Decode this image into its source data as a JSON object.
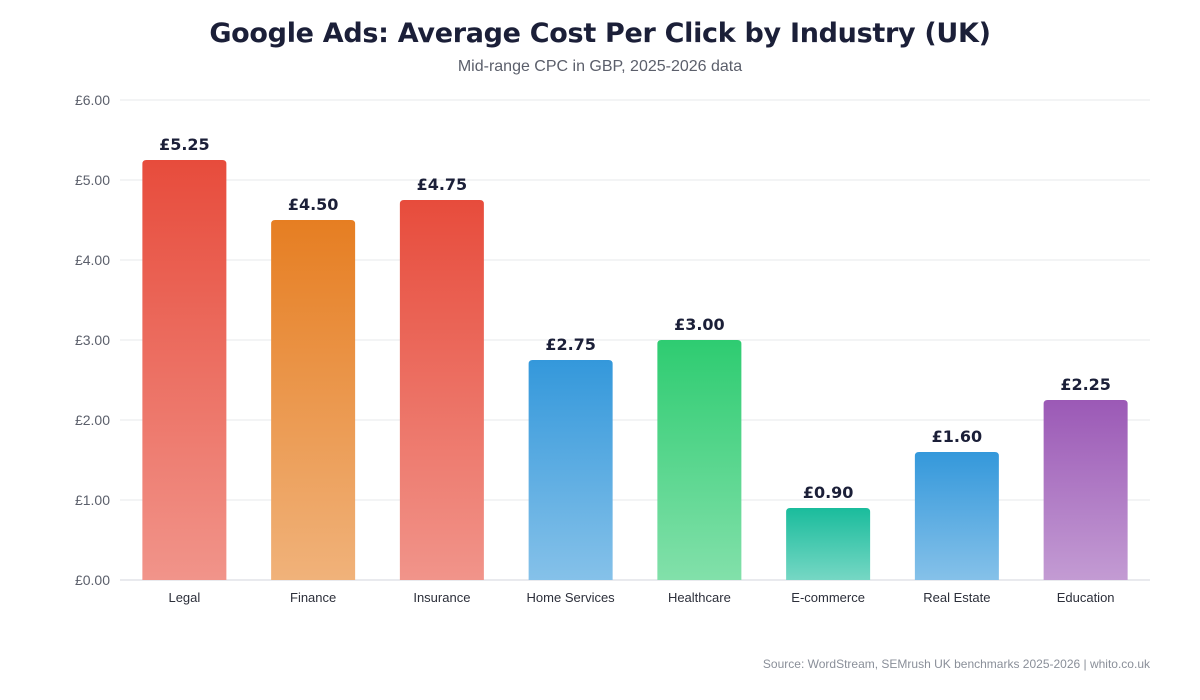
{
  "chart_data": {
    "type": "bar",
    "title": "Google Ads: Average Cost Per Click by Industry (UK)",
    "subtitle": "Mid-range CPC in GBP, 2025-2026 data",
    "categories": [
      "Legal",
      "Finance",
      "Insurance",
      "Home Services",
      "Healthcare",
      "E-commerce",
      "Real Estate",
      "Education"
    ],
    "values": [
      5.25,
      4.5,
      4.75,
      2.75,
      3.0,
      0.9,
      1.6,
      2.25
    ],
    "value_labels": [
      "£5.25",
      "£4.50",
      "£4.75",
      "£2.75",
      "£3.00",
      "£0.90",
      "£1.60",
      "£2.25"
    ],
    "yticks": [
      0,
      1,
      2,
      3,
      4,
      5,
      6
    ],
    "ytick_labels": [
      "£0.00",
      "£1.00",
      "£2.00",
      "£3.00",
      "£4.00",
      "£5.00",
      "£6.00"
    ],
    "ylim": [
      0,
      6
    ],
    "grid": true,
    "bar_colors": [
      [
        "#e74c3c",
        "#f1948a"
      ],
      [
        "#e67e22",
        "#f0b27a"
      ],
      [
        "#e74c3c",
        "#f1948a"
      ],
      [
        "#3498db",
        "#85c1e9"
      ],
      [
        "#2ecc71",
        "#82e0aa"
      ],
      [
        "#1abc9c",
        "#76d7c4"
      ],
      [
        "#3498db",
        "#85c1e9"
      ],
      [
        "#9b59b6",
        "#c39bd3"
      ]
    ],
    "source": "Source: WordStream, SEMrush UK benchmarks 2025-2026 | whito.co.uk"
  }
}
